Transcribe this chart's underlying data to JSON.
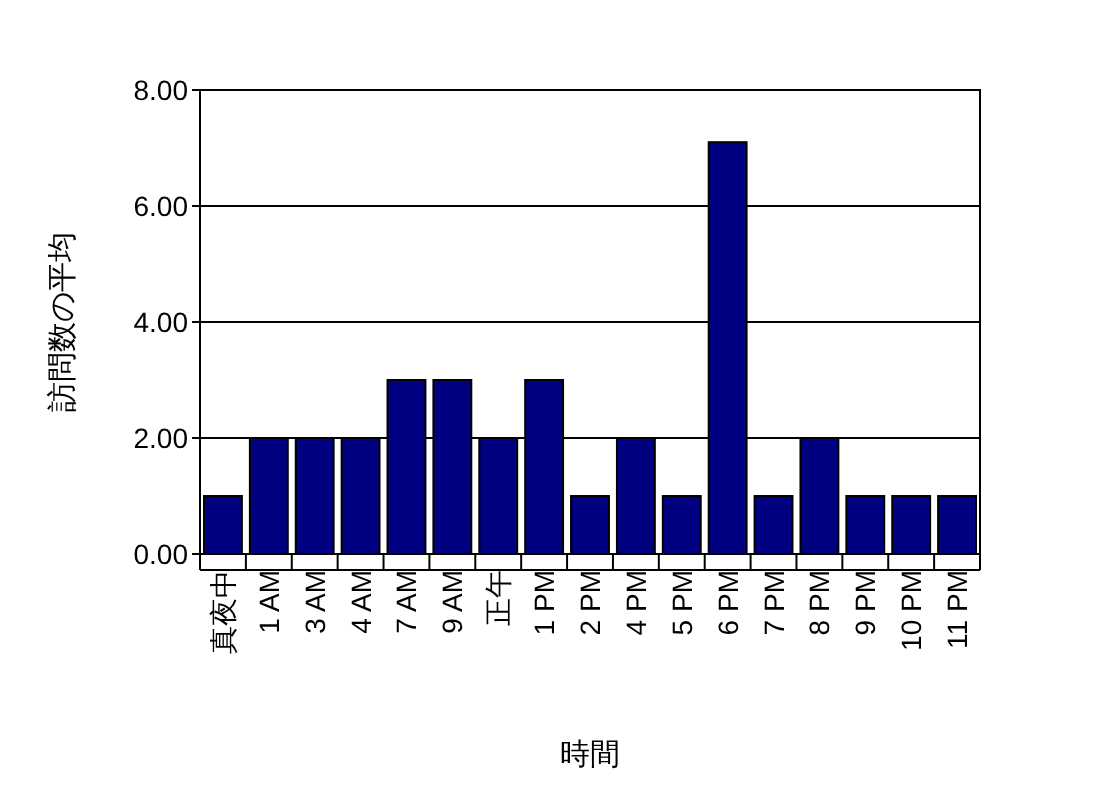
{
  "chart_data": {
    "type": "bar",
    "xlabel": "時間",
    "ylabel": "訪問数の平均",
    "categories": [
      "真夜中",
      "1 AM",
      "3 AM",
      "4 AM",
      "7 AM",
      "9 AM",
      "正午",
      "1 PM",
      "2 PM",
      "4 PM",
      "5 PM",
      "6 PM",
      "7 PM",
      "8 PM",
      "9 PM",
      "10 PM",
      "11 PM"
    ],
    "values": [
      1,
      2,
      2,
      2,
      3,
      3,
      2,
      3,
      1,
      2,
      1,
      7.1,
      1,
      2,
      1,
      1,
      1
    ],
    "color": "#000080",
    "ylim": [
      0,
      8
    ],
    "yticks": [
      {
        "value": 0,
        "label": "0.00"
      },
      {
        "value": 2,
        "label": "2.00"
      },
      {
        "value": 4,
        "label": "4.00"
      },
      {
        "value": 6,
        "label": "6.00"
      },
      {
        "value": 8,
        "label": "8.00"
      }
    ],
    "grid": "y"
  }
}
